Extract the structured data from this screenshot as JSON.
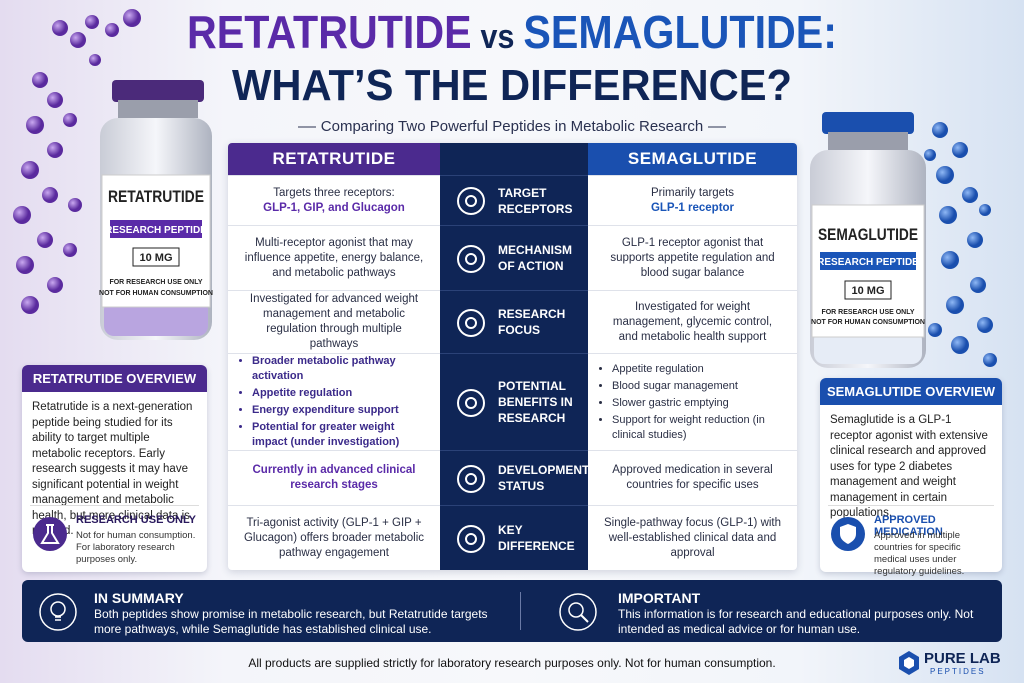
{
  "title": {
    "part1": "RETATRUTIDE",
    "vs": "vs",
    "part2": "SEMAGLUTIDE:",
    "line2": "WHAT’S THE DIFFERENCE?"
  },
  "subtitle": "Comparing Two Powerful Peptides in Metabolic Research",
  "left_vial": {
    "name": "RETATRUTIDE",
    "label": "RESEARCH PEPTIDE",
    "dose": "10 MG",
    "note1": "FOR RESEARCH USE ONLY",
    "note2": "NOT FOR HUMAN CONSUMPTION"
  },
  "right_vial": {
    "name": "SEMAGLUTIDE",
    "label": "RESEARCH PEPTIDE",
    "dose": "10 MG",
    "note1": "FOR RESEARCH USE ONLY",
    "note2": "NOT FOR HUMAN CONSUMPTION"
  },
  "table": {
    "headers": [
      "RETATRUTIDE",
      "SEMAGLUTIDE"
    ],
    "rows": [
      {
        "label": "TARGET RECEPTORS",
        "left": {
          "text": "Targets three receptors:",
          "highlight": "GLP-1, GIP, and Glucagon"
        },
        "right": {
          "text": "Primarily targets",
          "highlight": "GLP-1 receptor"
        }
      },
      {
        "label": "MECHANISM OF ACTION",
        "left": {
          "text": "Multi-receptor agonist that may influence appetite, energy balance, and metabolic pathways"
        },
        "right": {
          "text": "GLP-1 receptor agonist that supports appetite regulation and blood sugar balance"
        }
      },
      {
        "label": "RESEARCH FOCUS",
        "left": {
          "text": "Investigated for advanced weight management and metabolic regulation through multiple pathways"
        },
        "right": {
          "text": "Investigated for weight management, glycemic control, and metabolic health support"
        }
      },
      {
        "label": "POTENTIAL BENEFITS IN RESEARCH",
        "left": {
          "items": [
            "Broader metabolic pathway activation",
            "Appetite regulation",
            "Energy expenditure support",
            "Potential for greater weight impact (under investigation)"
          ]
        },
        "right": {
          "items": [
            "Appetite regulation",
            "Blood sugar management",
            "Slower gastric emptying",
            "Support for weight reduction (in clinical studies)"
          ]
        }
      },
      {
        "label": "DEVELOPMENT STATUS",
        "left": {
          "highlight": "Currently in advanced clinical research stages"
        },
        "right": {
          "text": "Approved medication in several countries for specific uses"
        }
      },
      {
        "label": "KEY DIFFERENCE",
        "left": {
          "text": "Tri-agonist activity (GLP-1 + GIP + Glucagon) offers broader metabolic pathway engagement"
        },
        "right": {
          "text": "Single-pathway focus (GLP-1) with well-established clinical data and approval"
        }
      }
    ]
  },
  "left_overview": {
    "title": "RETATRUTIDE OVERVIEW",
    "text": "Retatrutide is a next-generation peptide being studied for its ability to target multiple metabolic receptors. Early research suggests it may have significant potential in weight management and metabolic health, but more clinical data is needed.",
    "badge_title": "RESEARCH USE ONLY",
    "badge_text": "Not for human consumption. For laboratory research purposes only."
  },
  "right_overview": {
    "title": "SEMAGLUTIDE OVERVIEW",
    "text": "Semaglutide is a GLP-1 receptor agonist with extensive clinical research and approved uses for type 2 diabetes management and weight management in certain populations.",
    "badge_title": "APPROVED MEDICATION",
    "badge_text": "Approved in multiple countries for specific medical uses under regulatory guidelines."
  },
  "summary": {
    "title": "IN SUMMARY",
    "text": "Both peptides show promise in metabolic research, but Retatrutide targets more pathways, while Semaglutide has established clinical use."
  },
  "important": {
    "title": "IMPORTANT",
    "text": "This information is for research and educational purposes only. Not intended as medical advice or for human use."
  },
  "footer": "All products are supplied strictly for laboratory research purposes only. Not for human consumption.",
  "brand": {
    "name": "PURE LAB",
    "sub": "PEPTIDES"
  }
}
